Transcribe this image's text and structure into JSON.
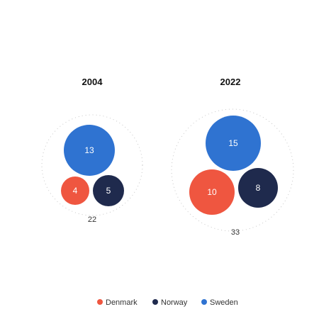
{
  "chart_data": {
    "type": "bubble",
    "groups": [
      {
        "title": "2004",
        "total": "22",
        "bubbles": [
          {
            "series": "Sweden",
            "value": 13
          },
          {
            "series": "Denmark",
            "value": 4
          },
          {
            "series": "Norway",
            "value": 5
          }
        ]
      },
      {
        "title": "2022",
        "total": "33",
        "bubbles": [
          {
            "series": "Sweden",
            "value": 15
          },
          {
            "series": "Denmark",
            "value": 10
          },
          {
            "series": "Norway",
            "value": 8
          }
        ]
      }
    ],
    "legend": [
      {
        "name": "Denmark",
        "color": "#ef5640"
      },
      {
        "name": "Norway",
        "color": "#1f2a4d"
      },
      {
        "name": "Sweden",
        "color": "#2f73d1"
      }
    ],
    "legend_position": "bottom"
  }
}
